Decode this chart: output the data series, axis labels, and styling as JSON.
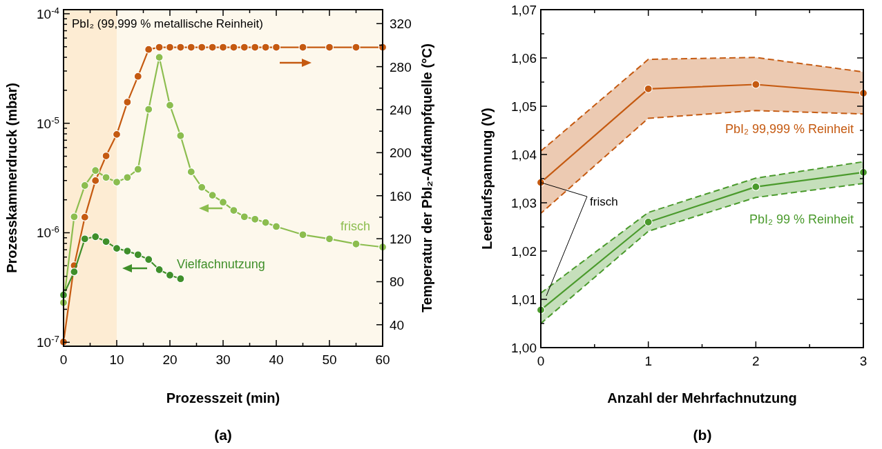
{
  "chart_data": [
    {
      "type": "line",
      "xlabel": "Prozesszeit (min)",
      "ylabel": "Prozesskammerdruck (mbar)",
      "y2label": "Temperatur der PbI₂-Aufdampfquelle (°C)",
      "annotations": [
        "PbI₂ (99,999 % metallische Reinheit)",
        "(a)"
      ],
      "log": "y",
      "grid": false,
      "marker": "circle",
      "line_style": "solid",
      "xlim": [
        0,
        60
      ],
      "xticks": [
        0,
        {
          "value": 5,
          "label": null
        },
        10,
        {
          "value": 15,
          "label": null
        },
        20,
        {
          "value": 25,
          "label": null
        },
        30,
        {
          "value": 35,
          "label": null
        },
        40,
        {
          "value": 45,
          "label": null
        },
        50,
        {
          "value": 55,
          "label": null
        },
        60
      ],
      "ylim": [
        9.2e-08,
        0.000109
      ],
      "yticks": [
        {
          "value": 1e-07,
          "label": "10$^{-7}$"
        },
        {
          "value": 2e-07,
          "label": null
        },
        {
          "value": 3e-07,
          "label": null
        },
        {
          "value": 4e-07,
          "label": null
        },
        {
          "value": 5e-07,
          "label": null
        },
        {
          "value": 6e-07,
          "label": null
        },
        {
          "value": 7e-07,
          "label": null
        },
        {
          "value": 8e-07,
          "label": null
        },
        {
          "value": 9e-07,
          "label": null
        },
        {
          "value": 1e-06,
          "label": "10$^{-6}$"
        },
        {
          "value": 2e-06,
          "label": null
        },
        {
          "value": 3e-06,
          "label": null
        },
        {
          "value": 4e-06,
          "label": null
        },
        {
          "value": 5e-06,
          "label": null
        },
        {
          "value": 6e-06,
          "label": null
        },
        {
          "value": 7e-06,
          "label": null
        },
        {
          "value": 8e-06,
          "label": null
        },
        {
          "value": 9e-06,
          "label": null
        },
        {
          "value": 1e-05,
          "label": "10$^{-5}$"
        },
        {
          "value": 2e-05,
          "label": null
        },
        {
          "value": 3e-05,
          "label": null
        },
        {
          "value": 4e-05,
          "label": null
        },
        {
          "value": 5e-05,
          "label": null
        },
        {
          "value": 6e-05,
          "label": null
        },
        {
          "value": 7e-05,
          "label": null
        },
        {
          "value": 8e-05,
          "label": null
        },
        {
          "value": 9e-05,
          "label": null
        },
        {
          "value": 0.0001,
          "label": "10$^{-4}$"
        }
      ],
      "y2lim": [
        20,
        333
      ],
      "y2ticks": [
        40,
        {
          "value": 60,
          "label": null
        },
        80,
        {
          "value": 100,
          "label": null
        },
        120,
        {
          "value": 140,
          "label": null
        },
        160,
        {
          "value": 180,
          "label": null
        },
        200,
        {
          "value": 220,
          "label": null
        },
        240,
        {
          "value": 260,
          "label": null
        },
        280,
        {
          "value": 300,
          "label": null
        },
        320
      ],
      "bands": [
        {
          "axis": "x",
          "from": 0,
          "to": 10,
          "color": "#fdecd3"
        },
        {
          "axis": "x",
          "from": 10,
          "to": 60,
          "color": "#fdf8ec"
        }
      ],
      "series": [
        {
          "axis": "y2",
          "color": "#c55a11",
          "x": [
            0,
            2,
            4,
            6,
            8,
            10,
            12,
            14,
            16,
            18,
            20,
            22,
            24,
            26,
            28,
            30,
            32,
            34,
            36,
            38,
            40,
            45,
            50,
            55,
            60
          ],
          "values": [
            24,
            95,
            140,
            174,
            197,
            217,
            247,
            271,
            296,
            298,
            298,
            298,
            298,
            298,
            298,
            298,
            298,
            298,
            298,
            298,
            298,
            298,
            298,
            298,
            298
          ]
        },
        {
          "name": "frisch",
          "color": "#8cbd4f",
          "x": [
            0,
            2,
            4,
            6,
            8,
            10,
            12,
            14,
            16,
            18,
            20,
            22,
            24,
            26,
            28,
            30,
            32,
            34,
            36,
            38,
            40,
            45,
            50,
            55,
            60
          ],
          "values": [
            2.3e-07,
            1.4e-06,
            2.7e-06,
            3.7e-06,
            3.2e-06,
            2.9e-06,
            3.2e-06,
            3.8e-06,
            1.34e-05,
            4e-05,
            1.46e-05,
            7.7e-06,
            3.6e-06,
            2.6e-06,
            2.2e-06,
            1.9e-06,
            1.6e-06,
            1.4e-06,
            1.33e-06,
            1.24e-06,
            1.14e-06,
            9.6e-07,
            8.8e-07,
            7.9e-07,
            7.4e-07
          ]
        },
        {
          "name": "Vielfachnutzung",
          "color": "#3f8f2a",
          "x": [
            0,
            2,
            4,
            6,
            8,
            10,
            12,
            14,
            16,
            18,
            20,
            22
          ],
          "values": [
            2.7e-07,
            4.4e-07,
            8.8e-07,
            9.2e-07,
            8.3e-07,
            7.2e-07,
            6.8e-07,
            6.3e-07,
            5.7e-07,
            4.6e-07,
            4.1e-07,
            3.8e-07
          ]
        }
      ]
    },
    {
      "type": "line",
      "xlabel": "Anzahl der Mehrfachnutzung",
      "ylabel": "Leerlaufspannung (V)",
      "annotations": [
        {
          "text": "frisch",
          "x": 0,
          "y": 1.0342
        },
        "(b)"
      ],
      "grid": false,
      "marker": "circle",
      "line_style": "solid",
      "xlim": [
        0,
        3
      ],
      "xticks": [
        0,
        {
          "value": 0.5,
          "label": null
        },
        1,
        {
          "value": 1.5,
          "label": null
        },
        2,
        {
          "value": 2.5,
          "label": null
        },
        3
      ],
      "ylim": [
        1.0,
        1.07
      ],
      "yticks": [
        {
          "value": 1.0,
          "label": "1,00"
        },
        {
          "value": 1.005,
          "label": null
        },
        {
          "value": 1.01,
          "label": "1,01"
        },
        {
          "value": 1.015,
          "label": null
        },
        {
          "value": 1.02,
          "label": "1,02"
        },
        {
          "value": 1.025,
          "label": null
        },
        {
          "value": 1.03,
          "label": "1,03"
        },
        {
          "value": 1.035,
          "label": null
        },
        {
          "value": 1.04,
          "label": "1,04"
        },
        {
          "value": 1.045,
          "label": null
        },
        {
          "value": 1.05,
          "label": "1,05"
        },
        {
          "value": 1.055,
          "label": null
        },
        {
          "value": 1.06,
          "label": "1,06"
        },
        {
          "value": 1.065,
          "label": null
        },
        {
          "value": 1.07,
          "label": "1,07"
        }
      ],
      "series": [
        {
          "name": "PbI₂ 99,999 % Reinheit",
          "color": "#c55a11",
          "x": [
            0,
            1,
            2,
            3
          ],
          "values": [
            1.0342,
            1.0536,
            1.0545,
            1.0527
          ],
          "lower": [
            1.0278,
            1.0475,
            1.0491,
            1.0484
          ],
          "upper": [
            1.0407,
            1.0597,
            1.0601,
            1.0571
          ]
        },
        {
          "name": "PbI₂ 99 % Reinheit",
          "color": "#4a9a2c",
          "x": [
            0,
            1,
            2,
            3
          ],
          "values": [
            1.0078,
            1.026,
            1.0333,
            1.0363
          ],
          "lower": [
            1.005,
            1.0241,
            1.0311,
            1.034
          ],
          "upper": [
            1.0113,
            1.028,
            1.0351,
            1.0385
          ]
        }
      ]
    }
  ]
}
